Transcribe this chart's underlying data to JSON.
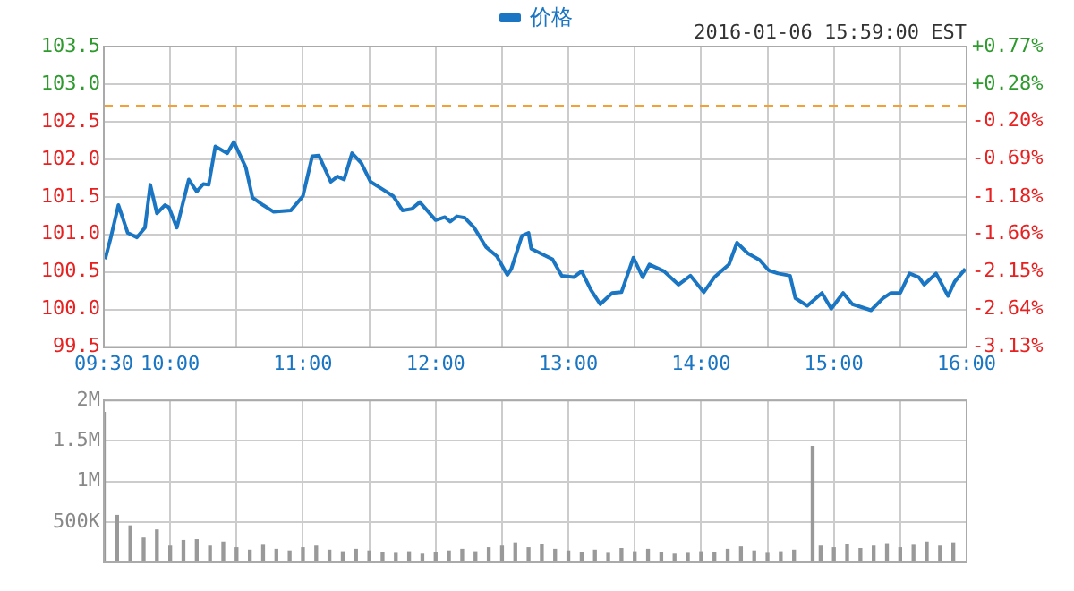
{
  "chart_data": [
    {
      "type": "line",
      "legend": "top",
      "grid": true,
      "marker": "none",
      "line_style": "solid",
      "annotations": [
        "2016-01-06 15:59:00 EST"
      ],
      "xlim": [
        9.5,
        16
      ],
      "xticks": [
        {
          "value": 9.5,
          "label": "09:30"
        },
        {
          "value": 10,
          "label": "10:00"
        },
        {
          "value": 10.5,
          "label": null
        },
        {
          "value": 11,
          "label": "11:00"
        },
        {
          "value": 11.5,
          "label": null
        },
        {
          "value": 12,
          "label": "12:00"
        },
        {
          "value": 12.5,
          "label": null
        },
        {
          "value": 13,
          "label": "13:00"
        },
        {
          "value": 13.5,
          "label": null
        },
        {
          "value": 14,
          "label": "14:00"
        },
        {
          "value": 14.5,
          "label": null
        },
        {
          "value": 15,
          "label": "15:00"
        },
        {
          "value": 15.5,
          "label": null
        },
        {
          "value": 16,
          "label": "16:00"
        }
      ],
      "ylim": [
        99.5,
        103.5
      ],
      "yticks": [
        99.5,
        {
          "value": 100,
          "label": "100.0"
        },
        100.5,
        {
          "value": 101,
          "label": "101.0"
        },
        101.5,
        {
          "value": 102,
          "label": "102.0"
        },
        102.5,
        {
          "value": 103,
          "label": "103.0"
        },
        103.5
      ],
      "y2lim": [
        -3.13,
        0.77
      ],
      "y2ticks": [
        {
          "value": -3.13,
          "label": "-3.13%"
        },
        {
          "value": -2.64,
          "label": "-2.64%"
        },
        {
          "value": -2.15,
          "label": "-2.15%"
        },
        {
          "value": -1.66,
          "label": "-1.66%"
        },
        {
          "value": -1.18,
          "label": "-1.18%"
        },
        {
          "value": -0.69,
          "label": "-0.69%"
        },
        {
          "value": -0.2,
          "label": "-0.20%"
        },
        {
          "value": 0.28,
          "label": "+0.28%"
        },
        {
          "value": 0.77,
          "label": "+0.77%"
        }
      ],
      "ref_lines": [
        {
          "axis": "y",
          "value": 102.71,
          "color": "#f5a033",
          "line_style": "dashed"
        }
      ],
      "series": [
        {
          "name": "价格",
          "color": "#1a75c2",
          "x": [
            9.51,
            9.55,
            9.61,
            9.68,
            9.75,
            9.81,
            9.85,
            9.9,
            9.96,
            9.99,
            10.05,
            10.14,
            10.2,
            10.25,
            10.29,
            10.34,
            10.43,
            10.48,
            10.57,
            10.62,
            10.7,
            10.78,
            10.91,
            11,
            11.07,
            11.12,
            11.21,
            11.26,
            11.31,
            11.37,
            11.44,
            11.51,
            11.6,
            11.68,
            11.75,
            11.82,
            11.88,
            12,
            12.07,
            12.11,
            12.16,
            12.22,
            12.29,
            12.38,
            12.46,
            12.54,
            12.57,
            12.65,
            12.7,
            12.72,
            12.88,
            12.95,
            13.04,
            13.1,
            13.17,
            13.24,
            13.33,
            13.4,
            13.49,
            13.56,
            13.61,
            13.72,
            13.83,
            13.92,
            14.02,
            14.1,
            14.21,
            14.27,
            14.35,
            14.44,
            14.51,
            14.58,
            14.67,
            14.71,
            14.8,
            14.91,
            14.98,
            15.07,
            15.14,
            15.28,
            15.37,
            15.43,
            15.5,
            15.57,
            15.64,
            15.68,
            15.77,
            15.86,
            15.91,
            15.99
          ],
          "values": [
            100.67,
            100.94,
            101.39,
            101.02,
            100.96,
            101.09,
            101.66,
            101.28,
            101.39,
            101.36,
            101.09,
            101.73,
            101.57,
            101.67,
            101.66,
            102.17,
            102.08,
            102.23,
            101.89,
            101.49,
            101.39,
            101.3,
            101.32,
            101.51,
            102.04,
            102.05,
            101.7,
            101.77,
            101.73,
            102.08,
            101.95,
            101.7,
            101.6,
            101.51,
            101.32,
            101.34,
            101.43,
            101.19,
            101.23,
            101.17,
            101.24,
            101.22,
            101.09,
            100.83,
            100.71,
            100.46,
            100.54,
            100.98,
            101.02,
            100.81,
            100.67,
            100.45,
            100.43,
            100.51,
            100.26,
            100.07,
            100.22,
            100.23,
            100.69,
            100.43,
            100.6,
            100.51,
            100.33,
            100.45,
            100.23,
            100.43,
            100.6,
            100.89,
            100.75,
            100.66,
            100.52,
            100.48,
            100.45,
            100.15,
            100.05,
            100.22,
            100.01,
            100.22,
            100.07,
            99.99,
            100.15,
            100.22,
            100.22,
            100.48,
            100.43,
            100.33,
            100.48,
            100.18,
            100.37,
            100.54
          ]
        }
      ]
    },
    {
      "type": "bar",
      "grid": true,
      "tick_labels": "y",
      "xlim": [
        9.5,
        16
      ],
      "xticks": [
        9.5,
        10,
        10.5,
        11,
        11.5,
        12,
        12.5,
        13,
        13.5,
        14,
        14.5,
        15,
        15.5,
        16
      ],
      "ylim": [
        0,
        2000000
      ],
      "yticks": [
        {
          "value": 0,
          "label": null
        },
        {
          "value": 500000,
          "label": "500K"
        },
        {
          "value": 1000000,
          "label": "1M"
        },
        {
          "value": 1500000,
          "label": "1.5M"
        },
        {
          "value": 2000000,
          "label": "2M"
        }
      ],
      "x": [
        9.5,
        9.6,
        9.7,
        9.8,
        9.9,
        10,
        10.1,
        10.2,
        10.3,
        10.4,
        10.5,
        10.6,
        10.7,
        10.8,
        10.9,
        11,
        11.1,
        11.2,
        11.3,
        11.4,
        11.5,
        11.6,
        11.7,
        11.8,
        11.9,
        12,
        12.1,
        12.2,
        12.3,
        12.4,
        12.5,
        12.6,
        12.7,
        12.8,
        12.9,
        13,
        13.1,
        13.2,
        13.3,
        13.4,
        13.5,
        13.6,
        13.7,
        13.8,
        13.9,
        14,
        14.1,
        14.2,
        14.3,
        14.4,
        14.5,
        14.6,
        14.7,
        14.84,
        14.9,
        15,
        15.1,
        15.2,
        15.3,
        15.4,
        15.5,
        15.6,
        15.7,
        15.8,
        15.9
      ],
      "values": [
        1850000,
        580000,
        450000,
        300000,
        400000,
        200000,
        270000,
        280000,
        200000,
        250000,
        180000,
        150000,
        210000,
        160000,
        140000,
        180000,
        200000,
        150000,
        130000,
        160000,
        140000,
        120000,
        110000,
        130000,
        100000,
        120000,
        140000,
        160000,
        130000,
        180000,
        200000,
        240000,
        180000,
        220000,
        160000,
        140000,
        120000,
        150000,
        110000,
        170000,
        130000,
        160000,
        120000,
        100000,
        110000,
        130000,
        120000,
        160000,
        190000,
        140000,
        110000,
        130000,
        150000,
        1430000,
        200000,
        180000,
        220000,
        170000,
        200000,
        230000,
        180000,
        210000,
        250000,
        200000,
        240000
      ],
      "color": "#999999"
    }
  ]
}
